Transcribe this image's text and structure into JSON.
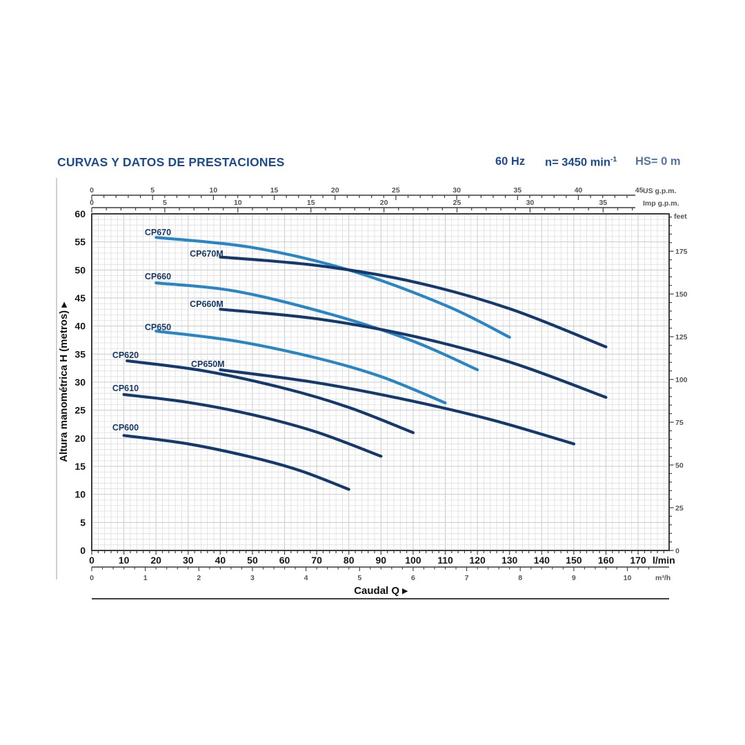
{
  "header": {
    "title": "CURVAS Y DATOS DE PRESTACIONES",
    "frequency": "60 Hz",
    "speed": "n= 3450 min",
    "speed_exponent": "-1",
    "suction_head": "HS= 0 m"
  },
  "chart_data": {
    "type": "line",
    "title": "CURVAS Y DATOS DE PRESTACIONES",
    "xlabel": "Caudal Q",
    "xlabel_arrow": "▸",
    "ylabel": "Altura manométrica H (metros)",
    "ylabel_arrow": "▸",
    "x_range_lmin": [
      0,
      179
    ],
    "y_range_m": [
      0,
      60
    ],
    "grid": true,
    "legend": "none",
    "colors": {
      "light_curve": "#2a85c4",
      "dark_curve": "#16396b",
      "grid": "#d7d9db",
      "grid_major": "#c8cacc",
      "axis": "#3b3b3b",
      "tick_text": "#555555",
      "main_text": "#161616",
      "curve_label": "#17396a",
      "title_blue": "#1c4c8f",
      "suction_text": "#54749e"
    },
    "axes": {
      "bottom_lmin": {
        "unit": "l/min",
        "ticks": [
          0,
          10,
          20,
          30,
          40,
          50,
          60,
          70,
          80,
          90,
          100,
          110,
          120,
          130,
          140,
          150,
          160,
          170
        ],
        "minor_step": 2
      },
      "bottom_m3h": {
        "unit": "m³/h",
        "ticks": [
          0,
          1,
          2,
          3,
          4,
          5,
          6,
          7,
          8,
          9,
          10
        ],
        "minor_step": 0.2
      },
      "top_us_gpm": {
        "unit": "US g.p.m.",
        "ticks": [
          0,
          5,
          10,
          15,
          20,
          25,
          30,
          35,
          40,
          45
        ],
        "minor_step": 1
      },
      "top_imp_gpm": {
        "unit": "Imp g.p.m.",
        "ticks": [
          0,
          5,
          10,
          15,
          20,
          25,
          30,
          35
        ],
        "minor_step": 1
      },
      "left_metros": {
        "ticks": [
          0,
          5,
          10,
          15,
          20,
          25,
          30,
          35,
          40,
          45,
          50,
          55,
          60
        ]
      },
      "right_feet": {
        "unit": "feet",
        "ticks": [
          0,
          25,
          50,
          75,
          100,
          125,
          150,
          175
        ],
        "minor_step": 5
      }
    },
    "series": [
      {
        "name": "CP670",
        "color": "light",
        "points": [
          [
            20,
            55.8
          ],
          [
            50,
            54.0
          ],
          [
            80,
            50.0
          ],
          [
            110,
            43.7
          ],
          [
            130,
            38.0
          ]
        ],
        "label_q": 16.5,
        "label_h": 56.2
      },
      {
        "name": "CP670M",
        "color": "dark",
        "points": [
          [
            40,
            52.3
          ],
          [
            70,
            50.8
          ],
          [
            100,
            47.9
          ],
          [
            130,
            43.1
          ],
          [
            160,
            36.3
          ]
        ],
        "label_q": 30.5,
        "label_h": 52.4
      },
      {
        "name": "CP660",
        "color": "light",
        "points": [
          [
            20,
            47.7
          ],
          [
            45,
            46.2
          ],
          [
            75,
            42.0
          ],
          [
            100,
            37.3
          ],
          [
            120,
            32.2
          ]
        ],
        "label_q": 16.5,
        "label_h": 48.3
      },
      {
        "name": "CP660M",
        "color": "dark",
        "points": [
          [
            40,
            43.0
          ],
          [
            70,
            41.3
          ],
          [
            100,
            38.2
          ],
          [
            130,
            33.6
          ],
          [
            160,
            27.3
          ]
        ],
        "label_q": 30.5,
        "label_h": 43.4
      },
      {
        "name": "CP650",
        "color": "light",
        "points": [
          [
            20,
            39.1
          ],
          [
            45,
            37.3
          ],
          [
            70,
            34.3
          ],
          [
            90,
            31.0
          ],
          [
            110,
            26.3
          ]
        ],
        "label_q": 16.5,
        "label_h": 39.3
      },
      {
        "name": "CP650M",
        "color": "dark",
        "points": [
          [
            40,
            32.2
          ],
          [
            70,
            29.9
          ],
          [
            100,
            26.6
          ],
          [
            125,
            23.2
          ],
          [
            150,
            19.0
          ]
        ],
        "label_q": 30.9,
        "label_h": 32.7
      },
      {
        "name": "CP620",
        "color": "dark",
        "points": [
          [
            11,
            33.8
          ],
          [
            35,
            32.0
          ],
          [
            60,
            28.9
          ],
          [
            80,
            25.5
          ],
          [
            100,
            21.0
          ]
        ],
        "label_q": 6.4,
        "label_h": 34.3
      },
      {
        "name": "CP610",
        "color": "dark",
        "points": [
          [
            10,
            27.8
          ],
          [
            30,
            26.4
          ],
          [
            50,
            24.2
          ],
          [
            70,
            21.1
          ],
          [
            90,
            16.8
          ]
        ],
        "label_q": 6.4,
        "label_h": 28.4
      },
      {
        "name": "CP600",
        "color": "dark",
        "points": [
          [
            10,
            20.5
          ],
          [
            30,
            19.0
          ],
          [
            50,
            16.6
          ],
          [
            65,
            14.2
          ],
          [
            80,
            10.9
          ]
        ],
        "label_q": 6.4,
        "label_h": 21.4
      }
    ]
  }
}
